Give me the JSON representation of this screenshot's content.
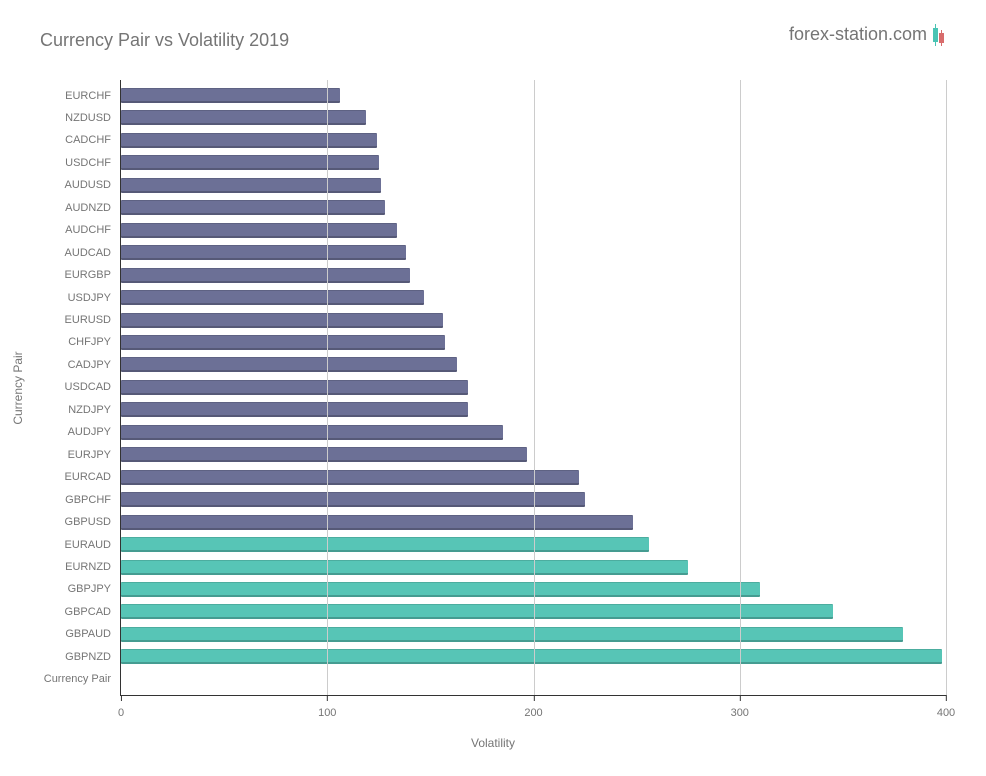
{
  "chart": {
    "type": "horizontal-bar",
    "title": "Currency Pair vs Volatility 2019",
    "x_axis": {
      "label": "Volatility",
      "min": 0,
      "max": 400,
      "ticks": [
        0,
        100,
        200,
        300,
        400
      ],
      "gridline_color": "#cccccc"
    },
    "y_axis": {
      "label": "Currency Pair"
    },
    "colors": {
      "primary": "#6c7096",
      "highlight": "#57c5b6",
      "title_text": "#757575",
      "tick_text": "#757575",
      "background": "#ffffff"
    },
    "bars": [
      {
        "label": "EURCHF",
        "value": 106,
        "color": "#6c7096"
      },
      {
        "label": "NZDUSD",
        "value": 119,
        "color": "#6c7096"
      },
      {
        "label": "CADCHF",
        "value": 124,
        "color": "#6c7096"
      },
      {
        "label": "USDCHF",
        "value": 125,
        "color": "#6c7096"
      },
      {
        "label": "AUDUSD",
        "value": 126,
        "color": "#6c7096"
      },
      {
        "label": "AUDNZD",
        "value": 128,
        "color": "#6c7096"
      },
      {
        "label": "AUDCHF",
        "value": 134,
        "color": "#6c7096"
      },
      {
        "label": "AUDCAD",
        "value": 138,
        "color": "#6c7096"
      },
      {
        "label": "EURGBP",
        "value": 140,
        "color": "#6c7096"
      },
      {
        "label": "USDJPY",
        "value": 147,
        "color": "#6c7096"
      },
      {
        "label": "EURUSD",
        "value": 156,
        "color": "#6c7096"
      },
      {
        "label": "CHFJPY",
        "value": 157,
        "color": "#6c7096"
      },
      {
        "label": "CADJPY",
        "value": 163,
        "color": "#6c7096"
      },
      {
        "label": "USDCAD",
        "value": 168,
        "color": "#6c7096"
      },
      {
        "label": "NZDJPY",
        "value": 168,
        "color": "#6c7096"
      },
      {
        "label": "AUDJPY",
        "value": 185,
        "color": "#6c7096"
      },
      {
        "label": "EURJPY",
        "value": 197,
        "color": "#6c7096"
      },
      {
        "label": "EURCAD",
        "value": 222,
        "color": "#6c7096"
      },
      {
        "label": "GBPCHF",
        "value": 225,
        "color": "#6c7096"
      },
      {
        "label": "GBPUSD",
        "value": 248,
        "color": "#6c7096"
      },
      {
        "label": "EURAUD",
        "value": 256,
        "color": "#57c5b6"
      },
      {
        "label": "EURNZD",
        "value": 275,
        "color": "#57c5b6"
      },
      {
        "label": "GBPJPY",
        "value": 310,
        "color": "#57c5b6"
      },
      {
        "label": "GBPCAD",
        "value": 345,
        "color": "#57c5b6"
      },
      {
        "label": "GBPAUD",
        "value": 379,
        "color": "#57c5b6"
      },
      {
        "label": "GBPNZD",
        "value": 398,
        "color": "#57c5b6"
      },
      {
        "label": "Currency Pair",
        "value": 0,
        "color": "#6c7096"
      }
    ],
    "logo": {
      "text": "forex-station.com",
      "candle_green": "#4ac4b4",
      "candle_red": "#d86c6c"
    }
  }
}
